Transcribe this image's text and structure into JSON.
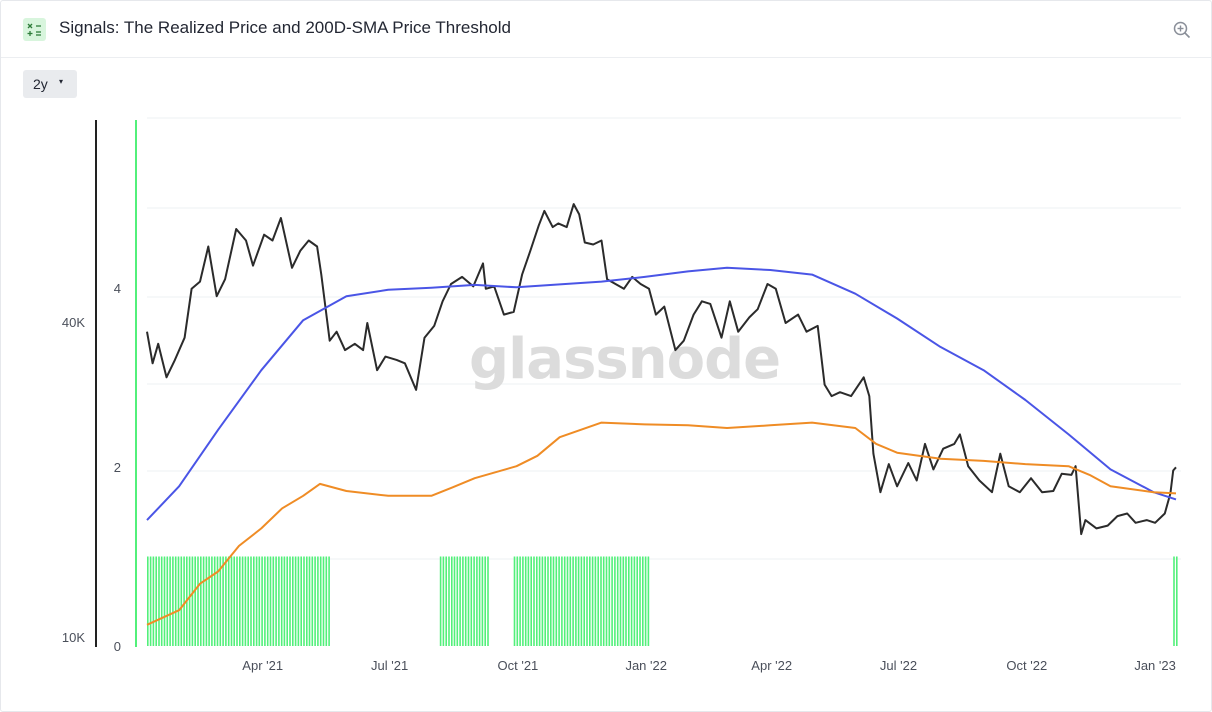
{
  "header": {
    "title": "Signals: The Realized Price and 200D-SMA Price Threshold",
    "icon": "calculator-icon",
    "zoom_icon": "zoom-in-icon"
  },
  "controls": {
    "range_label": "2y",
    "caret": "▾"
  },
  "watermark": "glassnode",
  "chart_data": {
    "type": "line",
    "x_ticks": [
      "Apr '21",
      "Jul '21",
      "Oct '21",
      "Jan '22",
      "Apr '22",
      "Jul '22",
      "Oct '22",
      "Jan '23"
    ],
    "left_axis": {
      "scale": "log",
      "ticks": [
        "40K",
        "10K"
      ]
    },
    "right_axis": {
      "ticks": [
        "4",
        "2",
        "0"
      ],
      "range": [
        0,
        4
      ]
    },
    "x_range": [
      "2021-01-08",
      "2023-01-16"
    ],
    "grid": true,
    "legend": "none",
    "colors": {
      "price": "#2b2b2b",
      "sma": "#4a55e6",
      "realized": "#ef8c25",
      "signal": "#52f07a"
    },
    "series": [
      {
        "key": "price",
        "points": [
          [
            "2021-01-08",
            38500
          ],
          [
            "2021-01-12",
            33500
          ],
          [
            "2021-01-16",
            36500
          ],
          [
            "2021-01-22",
            31500
          ],
          [
            "2021-01-28",
            34000
          ],
          [
            "2021-02-04",
            37500
          ],
          [
            "2021-02-09",
            46500
          ],
          [
            "2021-02-15",
            48000
          ],
          [
            "2021-02-21",
            56000
          ],
          [
            "2021-02-27",
            45000
          ],
          [
            "2021-03-05",
            48500
          ],
          [
            "2021-03-13",
            60500
          ],
          [
            "2021-03-20",
            57500
          ],
          [
            "2021-03-25",
            51500
          ],
          [
            "2021-04-02",
            59000
          ],
          [
            "2021-04-08",
            57500
          ],
          [
            "2021-04-14",
            63500
          ],
          [
            "2021-04-22",
            51000
          ],
          [
            "2021-04-28",
            55000
          ],
          [
            "2021-05-04",
            57500
          ],
          [
            "2021-05-10",
            56000
          ],
          [
            "2021-05-13",
            49500
          ],
          [
            "2021-05-19",
            37000
          ],
          [
            "2021-05-24",
            38500
          ],
          [
            "2021-05-30",
            35500
          ],
          [
            "2021-06-06",
            36500
          ],
          [
            "2021-06-12",
            35500
          ],
          [
            "2021-06-15",
            40000
          ],
          [
            "2021-06-22",
            32500
          ],
          [
            "2021-06-28",
            34500
          ],
          [
            "2021-07-06",
            34000
          ],
          [
            "2021-07-12",
            33500
          ],
          [
            "2021-07-20",
            29800
          ],
          [
            "2021-07-26",
            37500
          ],
          [
            "2021-08-02",
            39500
          ],
          [
            "2021-08-08",
            44000
          ],
          [
            "2021-08-14",
            47500
          ],
          [
            "2021-08-22",
            49000
          ],
          [
            "2021-08-30",
            47000
          ],
          [
            "2021-09-06",
            52000
          ],
          [
            "2021-09-08",
            46500
          ],
          [
            "2021-09-14",
            47000
          ],
          [
            "2021-09-21",
            41500
          ],
          [
            "2021-09-28",
            42000
          ],
          [
            "2021-10-04",
            49500
          ],
          [
            "2021-10-10",
            55000
          ],
          [
            "2021-10-16",
            61500
          ],
          [
            "2021-10-20",
            65500
          ],
          [
            "2021-10-26",
            61000
          ],
          [
            "2021-10-30",
            62000
          ],
          [
            "2021-11-05",
            61000
          ],
          [
            "2021-11-10",
            67500
          ],
          [
            "2021-11-14",
            64500
          ],
          [
            "2021-11-18",
            57000
          ],
          [
            "2021-11-24",
            56500
          ],
          [
            "2021-11-30",
            57500
          ],
          [
            "2021-12-04",
            48500
          ],
          [
            "2021-12-10",
            47500
          ],
          [
            "2021-12-16",
            46500
          ],
          [
            "2021-12-22",
            49000
          ],
          [
            "2021-12-28",
            47500
          ],
          [
            "2022-01-03",
            46500
          ],
          [
            "2022-01-08",
            41500
          ],
          [
            "2022-01-14",
            43000
          ],
          [
            "2022-01-22",
            35500
          ],
          [
            "2022-01-28",
            37000
          ],
          [
            "2022-02-04",
            41500
          ],
          [
            "2022-02-10",
            44000
          ],
          [
            "2022-02-16",
            43500
          ],
          [
            "2022-02-24",
            37500
          ],
          [
            "2022-03-02",
            44000
          ],
          [
            "2022-03-08",
            38500
          ],
          [
            "2022-03-16",
            41000
          ],
          [
            "2022-03-22",
            42500
          ],
          [
            "2022-03-29",
            47500
          ],
          [
            "2022-04-04",
            46500
          ],
          [
            "2022-04-11",
            40000
          ],
          [
            "2022-04-20",
            41500
          ],
          [
            "2022-04-26",
            38500
          ],
          [
            "2022-05-04",
            39500
          ],
          [
            "2022-05-09",
            30500
          ],
          [
            "2022-05-14",
            29000
          ],
          [
            "2022-05-20",
            29500
          ],
          [
            "2022-05-28",
            29000
          ],
          [
            "2022-06-06",
            31500
          ],
          [
            "2022-06-10",
            29000
          ],
          [
            "2022-06-13",
            22500
          ],
          [
            "2022-06-18",
            19000
          ],
          [
            "2022-06-24",
            21500
          ],
          [
            "2022-06-30",
            19500
          ],
          [
            "2022-07-08",
            21600
          ],
          [
            "2022-07-14",
            20000
          ],
          [
            "2022-07-20",
            23500
          ],
          [
            "2022-07-26",
            21000
          ],
          [
            "2022-08-02",
            23000
          ],
          [
            "2022-08-10",
            23500
          ],
          [
            "2022-08-14",
            24500
          ],
          [
            "2022-08-20",
            21300
          ],
          [
            "2022-08-28",
            20000
          ],
          [
            "2022-09-06",
            19000
          ],
          [
            "2022-09-12",
            22500
          ],
          [
            "2022-09-18",
            19500
          ],
          [
            "2022-09-26",
            19000
          ],
          [
            "2022-10-04",
            20200
          ],
          [
            "2022-10-12",
            19000
          ],
          [
            "2022-10-20",
            19100
          ],
          [
            "2022-10-26",
            20600
          ],
          [
            "2022-11-02",
            20500
          ],
          [
            "2022-11-05",
            21300
          ],
          [
            "2022-11-09",
            15800
          ],
          [
            "2022-11-12",
            16800
          ],
          [
            "2022-11-20",
            16200
          ],
          [
            "2022-11-28",
            16400
          ],
          [
            "2022-12-05",
            17100
          ],
          [
            "2022-12-12",
            17300
          ],
          [
            "2022-12-18",
            16600
          ],
          [
            "2022-12-26",
            16800
          ],
          [
            "2023-01-01",
            16600
          ],
          [
            "2023-01-08",
            17300
          ],
          [
            "2023-01-12",
            18900
          ],
          [
            "2023-01-14",
            20900
          ],
          [
            "2023-01-16",
            21200
          ]
        ]
      },
      {
        "key": "sma",
        "points": [
          [
            "2021-01-08",
            16800
          ],
          [
            "2021-01-31",
            19500
          ],
          [
            "2021-02-28",
            25000
          ],
          [
            "2021-03-31",
            32500
          ],
          [
            "2021-04-30",
            40500
          ],
          [
            "2021-05-31",
            45000
          ],
          [
            "2021-06-30",
            46300
          ],
          [
            "2021-07-31",
            46700
          ],
          [
            "2021-08-31",
            47300
          ],
          [
            "2021-09-30",
            46800
          ],
          [
            "2021-10-31",
            47400
          ],
          [
            "2021-11-30",
            48000
          ],
          [
            "2021-12-31",
            49000
          ],
          [
            "2022-01-31",
            50200
          ],
          [
            "2022-02-28",
            51000
          ],
          [
            "2022-03-31",
            50500
          ],
          [
            "2022-04-30",
            49500
          ],
          [
            "2022-05-31",
            45500
          ],
          [
            "2022-06-30",
            40800
          ],
          [
            "2022-07-31",
            36000
          ],
          [
            "2022-08-31",
            32500
          ],
          [
            "2022-09-30",
            28500
          ],
          [
            "2022-10-31",
            24500
          ],
          [
            "2022-11-30",
            21000
          ],
          [
            "2022-12-31",
            19000
          ],
          [
            "2023-01-16",
            18400
          ]
        ]
      },
      {
        "key": "realized",
        "points": [
          [
            "2021-01-08",
            10600
          ],
          [
            "2021-01-31",
            11300
          ],
          [
            "2021-02-15",
            12700
          ],
          [
            "2021-02-28",
            13400
          ],
          [
            "2021-03-15",
            15000
          ],
          [
            "2021-03-31",
            16200
          ],
          [
            "2021-04-15",
            17700
          ],
          [
            "2021-04-30",
            18700
          ],
          [
            "2021-05-12",
            19700
          ],
          [
            "2021-05-31",
            19100
          ],
          [
            "2021-06-30",
            18700
          ],
          [
            "2021-07-31",
            18700
          ],
          [
            "2021-08-15",
            19400
          ],
          [
            "2021-08-31",
            20200
          ],
          [
            "2021-09-30",
            21300
          ],
          [
            "2021-10-15",
            22300
          ],
          [
            "2021-10-31",
            24200
          ],
          [
            "2021-11-30",
            25800
          ],
          [
            "2021-12-31",
            25600
          ],
          [
            "2022-01-31",
            25500
          ],
          [
            "2022-02-28",
            25200
          ],
          [
            "2022-03-31",
            25500
          ],
          [
            "2022-04-30",
            25800
          ],
          [
            "2022-05-31",
            25200
          ],
          [
            "2022-06-15",
            23500
          ],
          [
            "2022-06-30",
            22600
          ],
          [
            "2022-07-31",
            22000
          ],
          [
            "2022-08-31",
            21800
          ],
          [
            "2022-09-30",
            21500
          ],
          [
            "2022-10-31",
            21300
          ],
          [
            "2022-11-15",
            20500
          ],
          [
            "2022-11-30",
            19500
          ],
          [
            "2022-12-31",
            19000
          ],
          [
            "2023-01-16",
            18900
          ]
        ]
      }
    ],
    "signal": {
      "value": 1,
      "periods": [
        [
          "2021-01-08",
          "2021-05-19"
        ],
        [
          "2021-08-06",
          "2021-09-10"
        ],
        [
          "2021-09-28",
          "2022-01-03"
        ],
        [
          "2023-01-14",
          "2023-01-16"
        ]
      ]
    }
  }
}
